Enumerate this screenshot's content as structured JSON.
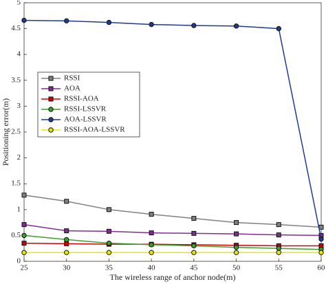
{
  "chart_data": {
    "type": "line",
    "x_label": "The wireless range of anchor node(m)",
    "y_label": "Positioning error(m)",
    "x": [
      25,
      30,
      35,
      40,
      45,
      50,
      55,
      60
    ],
    "xlim": [
      25,
      60
    ],
    "xticks": [
      25,
      30,
      35,
      40,
      45,
      50,
      55,
      60
    ],
    "ylim": [
      0,
      5
    ],
    "yticks": [
      0,
      0.5,
      1,
      1.5,
      2,
      2.5,
      3,
      3.5,
      4,
      4.5,
      5
    ],
    "grid": false,
    "legend": "upper left",
    "series": [
      {
        "name": "RSSI",
        "color": "#808080",
        "marker": "square",
        "values": [
          1.28,
          1.16,
          1.0,
          0.91,
          0.83,
          0.75,
          0.71,
          0.66
        ]
      },
      {
        "name": "AOA",
        "color": "#7e2f8e",
        "marker": "square",
        "values": [
          0.71,
          0.59,
          0.58,
          0.55,
          0.54,
          0.53,
          0.51,
          0.5
        ]
      },
      {
        "name": "RSSI-AOA",
        "color": "#d00000",
        "marker": "square",
        "values": [
          0.35,
          0.34,
          0.33,
          0.33,
          0.32,
          0.31,
          0.3,
          0.3
        ]
      },
      {
        "name": "RSSI-LSSVR",
        "color": "#3aa02a",
        "marker": "circle",
        "values": [
          0.5,
          0.42,
          0.35,
          0.32,
          0.3,
          0.27,
          0.25,
          0.23
        ]
      },
      {
        "name": "AOA-LSSVR",
        "color": "#1f3a93",
        "marker": "circle",
        "values": [
          4.66,
          4.65,
          4.62,
          4.58,
          4.56,
          4.55,
          4.5,
          0.43
        ]
      },
      {
        "name": "RSSI-AOA-LSSVR",
        "color": "#e8e800",
        "marker": "circle",
        "values": [
          0.17,
          0.17,
          0.17,
          0.17,
          0.17,
          0.17,
          0.17,
          0.17
        ]
      }
    ]
  }
}
